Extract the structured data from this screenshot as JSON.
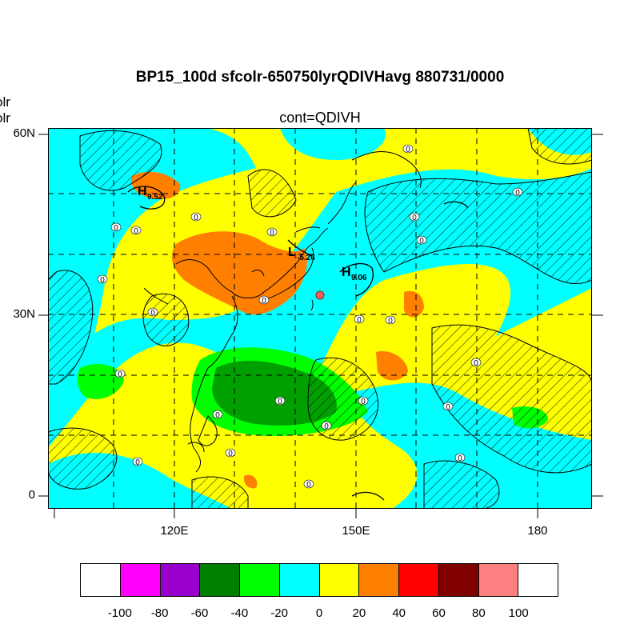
{
  "title": "BP15_100d sfcolr-650750lyrQDIVHavg  880731/0000",
  "subtitle": "cont=QDIVH",
  "left_labels": [
    "olr",
    "olr"
  ],
  "y_axis": {
    "ticks": [
      "60N",
      "30N",
      "0"
    ]
  },
  "x_axis": {
    "ticks": [
      "120E",
      "150E",
      "180"
    ]
  },
  "colorbar": {
    "labels": [
      "-100",
      "-80",
      "-60",
      "-40",
      "-20",
      "0",
      "20",
      "40",
      "60",
      "80",
      "100"
    ],
    "colors": [
      "#ffffff",
      "#ff00ff",
      "#9900cc",
      "#008000",
      "#00ff00",
      "#00ffff",
      "#ffff00",
      "#ff8000",
      "#ff0000",
      "#800000",
      "#ff8080",
      "#ffffff"
    ]
  },
  "map_labels": [
    {
      "letter": "H",
      "value": "9.52"
    },
    {
      "letter": "L",
      "value": "-5.26"
    },
    {
      "letter": "H",
      "value": "9.06"
    }
  ],
  "contour_label": "0"
}
